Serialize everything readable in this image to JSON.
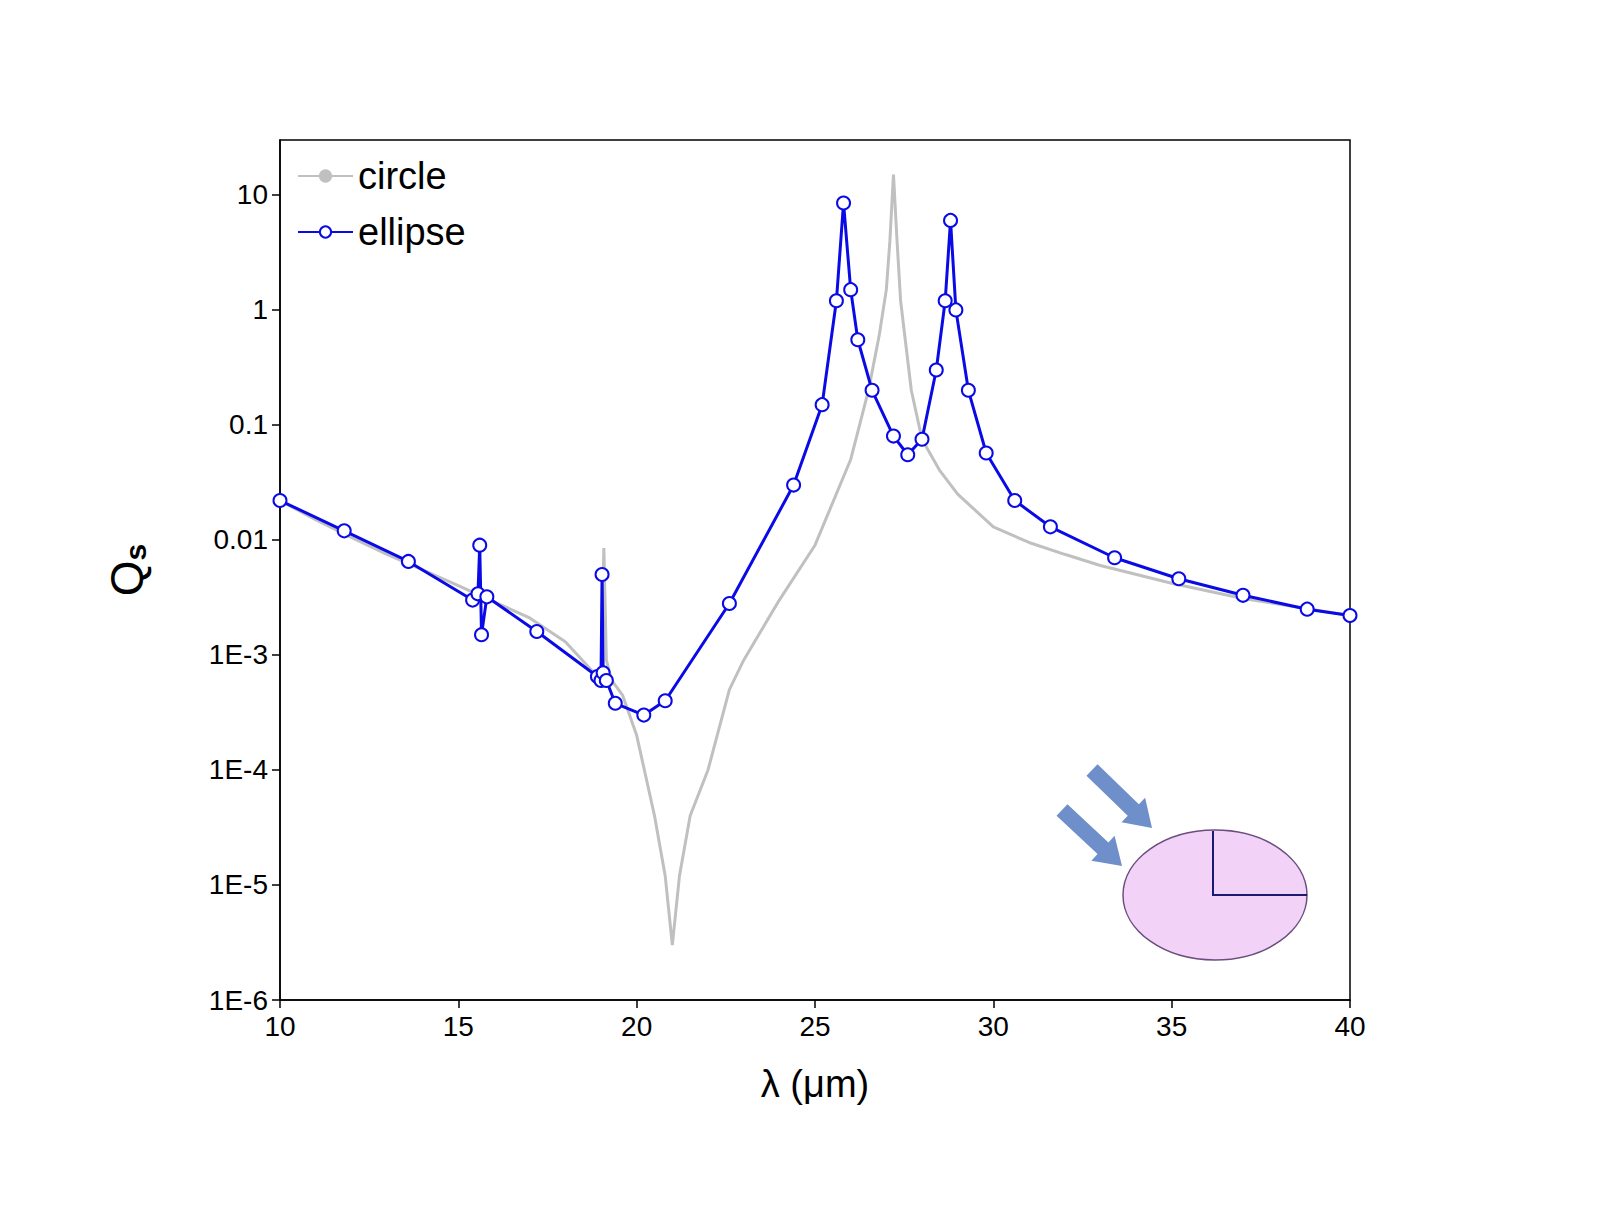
{
  "chart_data": {
    "type": "line",
    "xlabel": "λ (μm)",
    "ylabel": "Qs",
    "log": "y",
    "grid": false,
    "legend": "top-left",
    "xlim": [
      10,
      40
    ],
    "xticks": [
      10,
      15,
      20,
      25,
      30,
      35,
      40
    ],
    "ylim": [
      1e-06,
      30
    ],
    "yticks": [
      {
        "value": 1e-06,
        "label": "1E-6"
      },
      {
        "value": 1e-05,
        "label": "1E-5"
      },
      {
        "value": 0.0001,
        "label": "1E-4"
      },
      {
        "value": 0.001,
        "label": "1E-3"
      },
      0.01,
      0.1,
      1,
      10
    ],
    "series": [
      {
        "name": "circle",
        "color": "#c0c0c0",
        "marker": "none",
        "line_style": "solid",
        "x": [
          10,
          11,
          12,
          13,
          14,
          15,
          16,
          17,
          18,
          18.8,
          19.0,
          19.08,
          19.15,
          19.3,
          19.6,
          20,
          20.5,
          20.8,
          21,
          21.2,
          21.5,
          22,
          22.6,
          23,
          24,
          25,
          26,
          26.5,
          26.8,
          27,
          27.1,
          27.2,
          27.3,
          27.4,
          27.7,
          28,
          28.5,
          29,
          30,
          31,
          32,
          33,
          35,
          37,
          40
        ],
        "values": [
          0.022,
          0.015,
          0.0105,
          0.0075,
          0.0055,
          0.004,
          0.0029,
          0.0021,
          0.0013,
          0.0007,
          0.0006,
          0.0085,
          0.0009,
          0.0006,
          0.00045,
          0.0002,
          4e-05,
          1.2e-05,
          3e-06,
          1.2e-05,
          4e-05,
          0.0001,
          0.0005,
          0.0009,
          0.003,
          0.009,
          0.05,
          0.2,
          0.6,
          1.5,
          4,
          15,
          4,
          1.2,
          0.2,
          0.075,
          0.04,
          0.025,
          0.013,
          0.0095,
          0.0075,
          0.006,
          0.0042,
          0.0031,
          0.0022
        ]
      },
      {
        "name": "ellipse",
        "color": "#0a0ae6",
        "marker": "circle",
        "line_style": "solid",
        "x": [
          10,
          11.8,
          13.6,
          15.4,
          15.55,
          15.6,
          15.65,
          15.8,
          17.2,
          18.9,
          19.0,
          19.03,
          19.06,
          19.15,
          19.4,
          20.2,
          20.8,
          22.6,
          24.4,
          25.2,
          25.6,
          25.8,
          26.0,
          26.2,
          26.6,
          27.2,
          27.6,
          28.0,
          28.4,
          28.65,
          28.8,
          28.95,
          29.3,
          29.8,
          30.6,
          31.6,
          33.4,
          35.2,
          37,
          38.8,
          40
        ],
        "values": [
          0.022,
          0.012,
          0.0065,
          0.003,
          0.0034,
          0.009,
          0.0015,
          0.0032,
          0.0016,
          0.00065,
          0.0006,
          0.005,
          0.0007,
          0.0006,
          0.00038,
          0.0003,
          0.0004,
          0.0028,
          0.03,
          0.15,
          1.2,
          8.5,
          1.5,
          0.55,
          0.2,
          0.08,
          0.055,
          0.075,
          0.3,
          1.2,
          6,
          1,
          0.2,
          0.057,
          0.022,
          0.013,
          0.007,
          0.0046,
          0.0033,
          0.0025,
          0.0022
        ]
      }
    ]
  }
}
